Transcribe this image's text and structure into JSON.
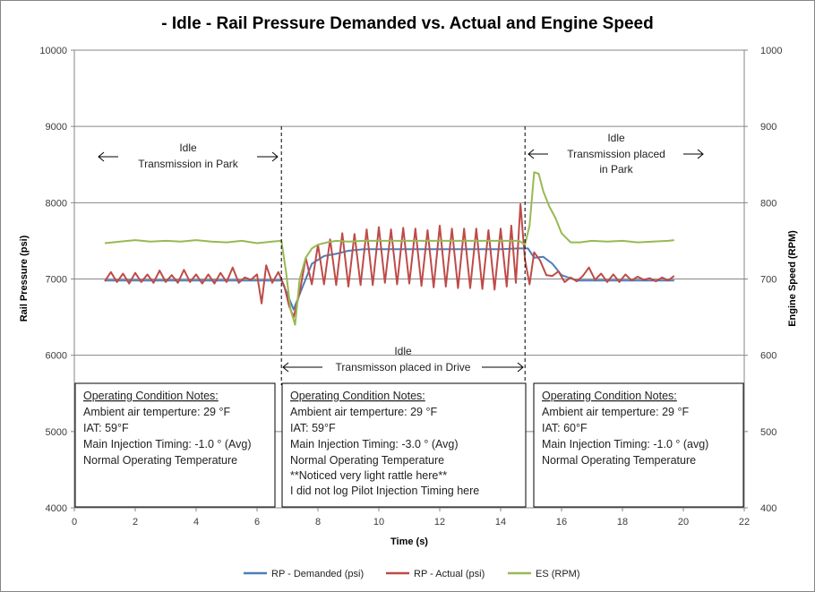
{
  "chart_data": {
    "type": "line",
    "title": "- Idle - Rail Pressure Demanded vs. Actual and Engine Speed",
    "xlabel": "Time (s)",
    "ylabel": "Rail Pressure (psi)",
    "y2label": "Engine Speed (RPM)",
    "xlim": [
      0,
      22
    ],
    "ylim": [
      4000,
      10000
    ],
    "y2lim": [
      400,
      1000
    ],
    "xticks": [
      "0",
      "2",
      "4",
      "6",
      "8",
      "10",
      "12",
      "14",
      "16",
      "18",
      "20",
      "22"
    ],
    "yticks": [
      "4000",
      "5000",
      "6000",
      "7000",
      "8000",
      "9000",
      "10000"
    ],
    "y2ticks": [
      "400",
      "500",
      "600",
      "700",
      "800",
      "900",
      "1000"
    ],
    "grid": "horizontal",
    "legend_position": "bottom",
    "series": [
      {
        "name": "RP - Demanded (psi)",
        "axis": "left",
        "color": "#4a7ebb",
        "x": [
          1.0,
          6.8,
          7.0,
          7.2,
          7.5,
          7.8,
          8.2,
          8.6,
          9.0,
          9.5,
          10.0,
          11.0,
          12.0,
          13.0,
          14.0,
          14.6,
          14.9,
          15.1,
          15.4,
          15.7,
          16.0,
          16.5,
          17.0,
          18.0,
          19.0,
          19.7
        ],
        "values": [
          6980,
          6980,
          6800,
          6600,
          6900,
          7200,
          7300,
          7330,
          7370,
          7390,
          7390,
          7390,
          7390,
          7390,
          7390,
          7400,
          7400,
          7280,
          7290,
          7200,
          7050,
          6980,
          6980,
          6980,
          6980,
          6980
        ]
      },
      {
        "name": "RP - Actual (psi)",
        "axis": "left",
        "color": "#be4b48",
        "x": [
          1.0,
          1.2,
          1.4,
          1.6,
          1.8,
          2.0,
          2.2,
          2.4,
          2.6,
          2.8,
          3.0,
          3.2,
          3.4,
          3.6,
          3.8,
          4.0,
          4.2,
          4.4,
          4.6,
          4.8,
          5.0,
          5.2,
          5.4,
          5.6,
          5.8,
          6.0,
          6.15,
          6.3,
          6.5,
          6.7,
          6.9,
          7.05,
          7.2,
          7.4,
          7.6,
          7.8,
          8.0,
          8.2,
          8.4,
          8.6,
          8.8,
          9.0,
          9.2,
          9.4,
          9.6,
          9.8,
          10.0,
          10.2,
          10.4,
          10.6,
          10.8,
          11.0,
          11.2,
          11.4,
          11.6,
          11.8,
          12.0,
          12.2,
          12.4,
          12.6,
          12.8,
          13.0,
          13.2,
          13.4,
          13.6,
          13.8,
          14.0,
          14.2,
          14.35,
          14.5,
          14.65,
          14.8,
          14.95,
          15.1,
          15.3,
          15.5,
          15.7,
          15.9,
          16.1,
          16.3,
          16.5,
          16.7,
          16.9,
          17.1,
          17.3,
          17.5,
          17.7,
          17.9,
          18.1,
          18.3,
          18.5,
          18.7,
          18.9,
          19.1,
          19.3,
          19.5,
          19.7
        ],
        "values": [
          6970,
          7090,
          6960,
          7070,
          6940,
          7080,
          6960,
          7060,
          6950,
          7110,
          6960,
          7050,
          6950,
          7120,
          6960,
          7060,
          6940,
          7060,
          6940,
          7080,
          6960,
          7150,
          6950,
          7020,
          6990,
          7060,
          6680,
          7180,
          6950,
          7090,
          6900,
          6650,
          6500,
          6820,
          7280,
          6930,
          7450,
          6930,
          7520,
          6920,
          7600,
          6900,
          7590,
          6920,
          7650,
          6920,
          7680,
          6950,
          7650,
          6930,
          7670,
          6940,
          7660,
          6910,
          7640,
          6890,
          7700,
          6900,
          7660,
          6880,
          7660,
          6880,
          7660,
          6870,
          7640,
          6860,
          7660,
          6900,
          7700,
          6950,
          7980,
          7250,
          6930,
          7350,
          7240,
          7050,
          7040,
          7100,
          6960,
          7020,
          6970,
          7040,
          7150,
          6990,
          7070,
          6960,
          7060,
          6960,
          7060,
          6980,
          7030,
          6990,
          7010,
          6970,
          7020,
          6980,
          7040
        ]
      },
      {
        "name": "ES (RPM)",
        "axis": "right",
        "color": "#98b954",
        "x": [
          1.0,
          1.5,
          2.0,
          2.5,
          3.0,
          3.5,
          4.0,
          4.5,
          5.0,
          5.5,
          6.0,
          6.5,
          6.8,
          6.95,
          7.1,
          7.25,
          7.4,
          7.6,
          7.8,
          8.0,
          8.3,
          8.6,
          9.0,
          9.5,
          10.0,
          11.0,
          12.0,
          13.0,
          14.0,
          14.6,
          14.8,
          14.95,
          15.1,
          15.25,
          15.4,
          15.6,
          15.8,
          16.0,
          16.3,
          16.6,
          17.0,
          17.5,
          18.0,
          18.5,
          19.0,
          19.5,
          19.7
        ],
        "values": [
          747,
          749,
          751,
          749,
          750,
          749,
          751,
          749,
          748,
          750,
          747,
          749,
          750,
          710,
          660,
          640,
          700,
          728,
          740,
          745,
          748,
          750,
          749,
          750,
          750,
          750,
          750,
          750,
          750,
          750,
          745,
          770,
          840,
          838,
          815,
          795,
          780,
          760,
          748,
          748,
          750,
          749,
          750,
          748,
          749,
          750,
          751
        ]
      }
    ],
    "annotations": {
      "left_region": {
        "title": "Idle",
        "subtitle": "Transmission in Park"
      },
      "middle_region": {
        "title": "Idle",
        "subtitle": "Transmisson placed in Drive"
      },
      "right_region": {
        "title": "Idle",
        "subtitle_line1": "Transmission placed",
        "subtitle_line2": "in Park"
      },
      "dividers_x": [
        6.8,
        14.8
      ]
    },
    "notes": [
      {
        "heading": "Operating Condition Notes:",
        "lines": [
          "Ambient air temperture: 29 °F",
          "IAT: 59°F",
          "Main Injection Timing: -1.0 ° (Avg)",
          "Normal Operating Temperature"
        ]
      },
      {
        "heading": "Operating Condition Notes:",
        "lines": [
          "Ambient air temperture: 29 °F",
          "IAT: 59°F",
          "Main Injection Timing: -3.0 ° (Avg)",
          "Normal Operating Temperature",
          "**Noticed very light rattle here**",
          "I did not log Pilot Injection Timing here"
        ]
      },
      {
        "heading": "Operating Condition Notes:",
        "lines": [
          "Ambient air temperture: 29 °F",
          "IAT: 60°F",
          "Main Injection Timing: -1.0 ° (avg)",
          "Normal Operating Temperature"
        ]
      }
    ]
  }
}
